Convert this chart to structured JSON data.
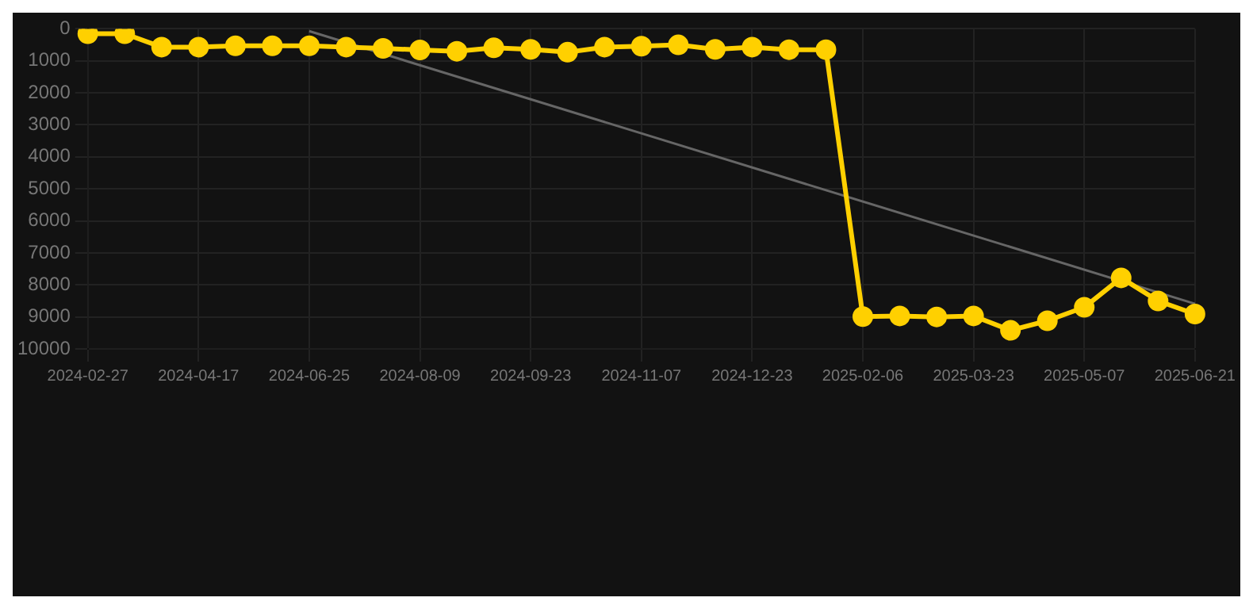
{
  "chart_data": {
    "type": "line",
    "categories": [
      "2024-02-27",
      null,
      null,
      "2024-04-17",
      null,
      null,
      "2024-06-25",
      null,
      null,
      "2024-08-09",
      null,
      null,
      "2024-09-23",
      null,
      null,
      "2024-11-07",
      null,
      null,
      "2024-12-23",
      null,
      null,
      "2025-02-06",
      null,
      null,
      "2025-03-23",
      null,
      null,
      "2025-05-07",
      null,
      null,
      "2025-06-21"
    ],
    "series": [
      {
        "color": "#ffd000",
        "marker": "circle",
        "values": [
          150,
          150,
          570,
          570,
          530,
          530,
          530,
          570,
          610,
          660,
          700,
          590,
          640,
          730,
          570,
          540,
          500,
          640,
          570,
          650,
          650,
          8990,
          8970,
          9000,
          8970,
          9420,
          9120,
          8700,
          7780,
          8500,
          8910
        ]
      },
      {
        "type": "line",
        "color": "#666666",
        "marker": "none",
        "values": [
          null,
          null,
          null,
          null,
          null,
          null,
          70,
          null,
          null,
          null,
          null,
          null,
          null,
          null,
          null,
          null,
          null,
          null,
          null,
          null,
          null,
          null,
          null,
          null,
          null,
          null,
          null,
          null,
          null,
          null,
          8590
        ]
      }
    ],
    "ylim": [
      10000,
      0
    ],
    "yticks": [
      0,
      1000,
      2000,
      3000,
      4000,
      5000,
      6000,
      7000,
      8000,
      9000,
      10000
    ],
    "grid": true,
    "legend": false
  }
}
